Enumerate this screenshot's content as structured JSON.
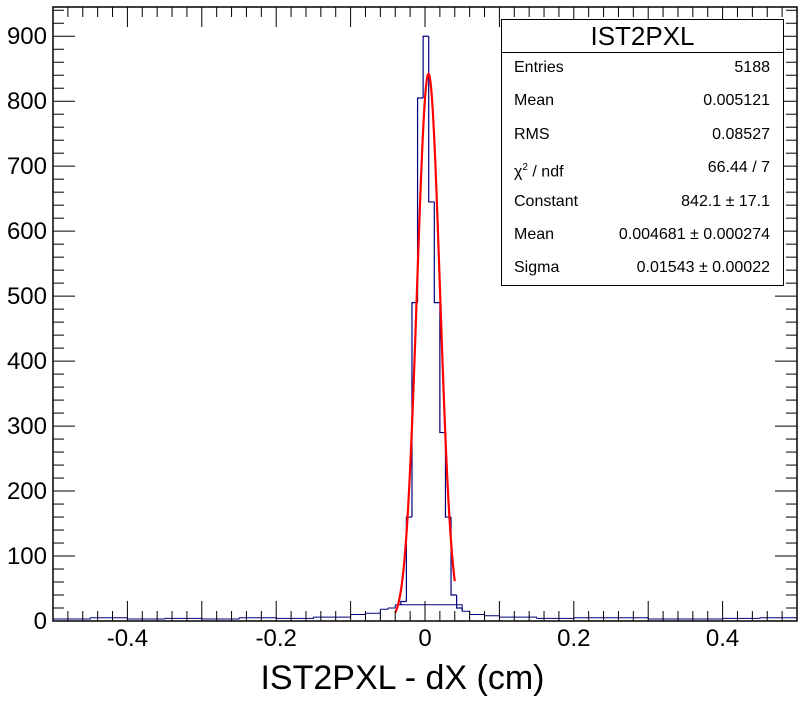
{
  "chart_data": {
    "type": "bar",
    "title": "",
    "xlabel": "IST2PXL - dX (cm)",
    "ylabel": "",
    "xlim": [
      -0.5,
      0.5
    ],
    "ylim": [
      0,
      945
    ],
    "xticks": [
      "-0.4",
      "-0.2",
      "0",
      "0.2",
      "0.4"
    ],
    "yticks": [
      "0",
      "100",
      "200",
      "300",
      "400",
      "500",
      "600",
      "700",
      "800",
      "900"
    ],
    "x_tick_values": [
      -0.4,
      -0.2,
      0,
      0.2,
      0.4
    ],
    "y_tick_values": [
      0,
      100,
      200,
      300,
      400,
      500,
      600,
      700,
      800,
      900
    ],
    "bins": {
      "x_low": [
        -0.0325,
        -0.025,
        -0.0175,
        -0.01,
        -0.0025,
        0.005,
        0.0125,
        0.02,
        0.0275,
        0.035,
        0.0425
      ],
      "counts": [
        30,
        160,
        490,
        805,
        900,
        645,
        490,
        290,
        160,
        40,
        20
      ]
    },
    "baseline_noise": [
      [
        -0.5,
        3
      ],
      [
        -0.45,
        5
      ],
      [
        -0.4,
        3
      ],
      [
        -0.35,
        4
      ],
      [
        -0.3,
        3
      ],
      [
        -0.25,
        5
      ],
      [
        -0.2,
        4
      ],
      [
        -0.15,
        6
      ],
      [
        -0.1,
        10
      ],
      [
        -0.08,
        12
      ],
      [
        -0.06,
        18
      ],
      [
        -0.05,
        20
      ],
      [
        -0.04,
        25
      ],
      [
        0.05,
        15
      ],
      [
        0.06,
        10
      ],
      [
        0.08,
        8
      ],
      [
        0.1,
        6
      ],
      [
        0.15,
        4
      ],
      [
        0.2,
        5
      ],
      [
        0.3,
        3
      ],
      [
        0.4,
        4
      ],
      [
        0.45,
        5
      ],
      [
        0.5,
        3
      ]
    ],
    "fit": {
      "function": "gaus",
      "constant": 842.1,
      "mean": 0.004681,
      "sigma": 0.01543,
      "x_range": [
        -0.04,
        0.04
      ]
    },
    "colors": {
      "histogram": "#00007f",
      "fit": "#ff0000",
      "axes": "#000000"
    },
    "grid": false,
    "legend": "none"
  },
  "stats": {
    "title": "IST2PXL",
    "rows": [
      {
        "key": "Entries",
        "value": "5188"
      },
      {
        "key": "Mean",
        "value": "0.005121"
      },
      {
        "key": "RMS",
        "value": "0.08527"
      },
      {
        "key": "χ",
        "sup": "2",
        "key_rest": " / ndf",
        "value": "66.44 / 7"
      },
      {
        "key": "Constant",
        "value": "842.1 ± 17.1"
      },
      {
        "key": "Mean",
        "value": "0.004681 ± 0.000274"
      },
      {
        "key": "Sigma",
        "value": "0.01543 ± 0.00022"
      }
    ]
  }
}
